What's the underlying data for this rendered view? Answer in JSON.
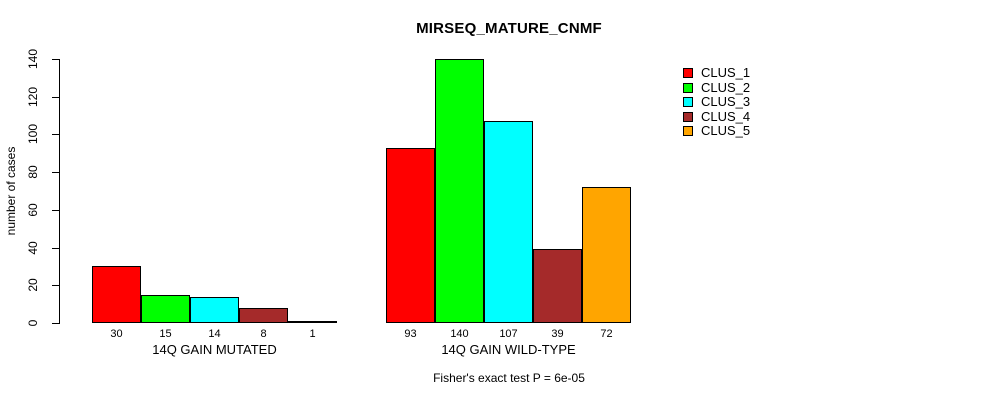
{
  "title": "MIRSEQ_MATURE_CNMF",
  "chart_data": {
    "type": "bar",
    "title": "MIRSEQ_MATURE_CNMF",
    "xlabel": "",
    "ylabel": "number of cases",
    "ylim": [
      0,
      140
    ],
    "yticks": [
      0,
      20,
      40,
      60,
      80,
      100,
      120,
      140
    ],
    "grid": false,
    "legend_position": "top-right-outside",
    "categories": [
      "14Q GAIN MUTATED",
      "14Q GAIN WILD-TYPE"
    ],
    "series": [
      {
        "name": "CLUS_1",
        "color": "#FF0000",
        "values": [
          30,
          93
        ]
      },
      {
        "name": "CLUS_2",
        "color": "#00FF00",
        "values": [
          15,
          140
        ]
      },
      {
        "name": "CLUS_3",
        "color": "#00FFFF",
        "values": [
          14,
          107
        ]
      },
      {
        "name": "CLUS_4",
        "color": "#A52A2A",
        "values": [
          8,
          39
        ]
      },
      {
        "name": "CLUS_5",
        "color": "#FFA500",
        "values": [
          1,
          72
        ]
      }
    ],
    "bar_value_labels": true,
    "annotation": "Fisher's exact test P = 6e-05"
  }
}
